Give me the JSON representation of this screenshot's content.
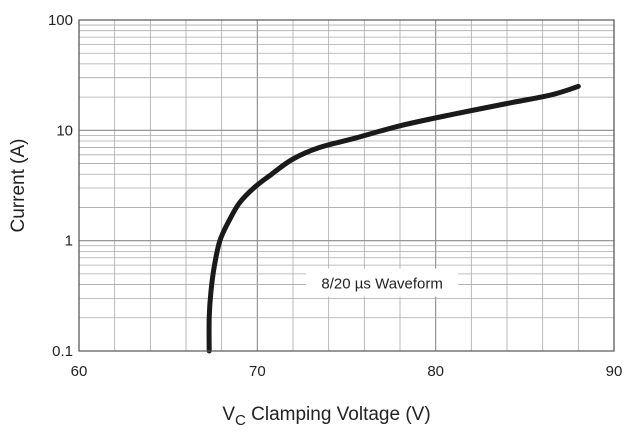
{
  "chart_data": {
    "type": "line",
    "title": "",
    "xlabel_main": "V",
    "xlabel_sub": "C",
    "xlabel_rest": " Clamping Voltage (V)",
    "ylabel": "Current (A)",
    "xlim": [
      60,
      90
    ],
    "ylim": [
      0.1,
      100
    ],
    "y_scale": "log",
    "x_ticks": [
      60,
      70,
      80,
      90
    ],
    "x_tick_labels": [
      "60",
      "70",
      "80",
      "90"
    ],
    "y_ticks": [
      0.1,
      1,
      10,
      100
    ],
    "y_tick_labels": [
      "0.1",
      "1",
      "10",
      "100"
    ],
    "x_minor_step": 2,
    "grid": true,
    "annotation": {
      "text": "8/20 µs Waveform",
      "x": 77,
      "y": 0.4
    },
    "series": [
      {
        "color": "#1a1a1a",
        "points": [
          [
            67.3,
            0.1
          ],
          [
            67.3,
            0.2
          ],
          [
            67.4,
            0.35
          ],
          [
            67.6,
            0.6
          ],
          [
            67.9,
            1.0
          ],
          [
            68.4,
            1.5
          ],
          [
            69.0,
            2.2
          ],
          [
            69.8,
            3.0
          ],
          [
            70.8,
            4.0
          ],
          [
            72.0,
            5.5
          ],
          [
            73.5,
            7.0
          ],
          [
            75.5,
            8.5
          ],
          [
            78.0,
            11.0
          ],
          [
            81.0,
            14.0
          ],
          [
            84.0,
            17.5
          ],
          [
            86.5,
            21.0
          ],
          [
            88.0,
            25.0
          ]
        ]
      }
    ]
  }
}
